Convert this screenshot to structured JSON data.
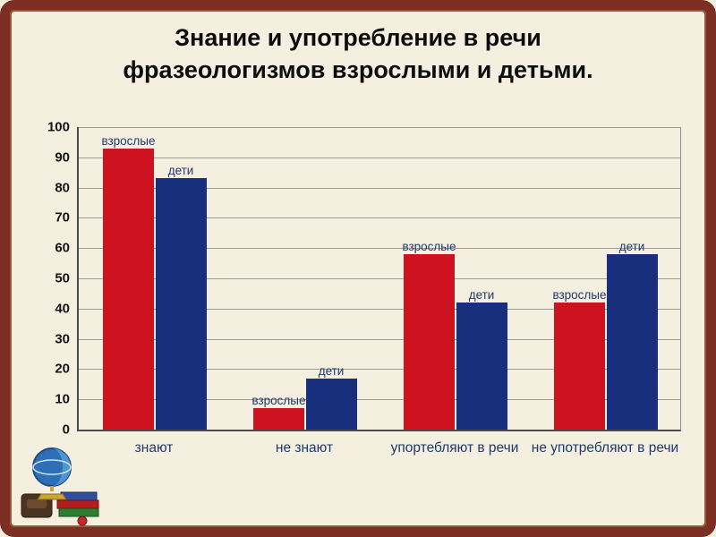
{
  "title": {
    "line1": "Знание и употребление в речи",
    "line2": "фразеологизмов взрослыми и детьми."
  },
  "chart_data": {
    "type": "bar",
    "categories": [
      "знают",
      "не знают",
      "упортебляют в речи",
      "не употребляют в речи"
    ],
    "series": [
      {
        "name": "взрослые",
        "color": "#ce1220",
        "values": [
          93,
          7,
          58,
          42
        ]
      },
      {
        "name": "дети",
        "color": "#172f7c",
        "values": [
          83,
          17,
          42,
          58
        ]
      }
    ],
    "title": "Знание и употребление в речи фразеологизмов взрослыми и детьми.",
    "xlabel": "",
    "ylabel": "",
    "ylim": [
      0,
      100
    ],
    "ytick_step": 10,
    "grid": true,
    "legend_position": "labels-above-bars",
    "label_color": "#1e3a6e"
  },
  "icons": [
    {
      "name": "globe-books-clipart"
    }
  ]
}
